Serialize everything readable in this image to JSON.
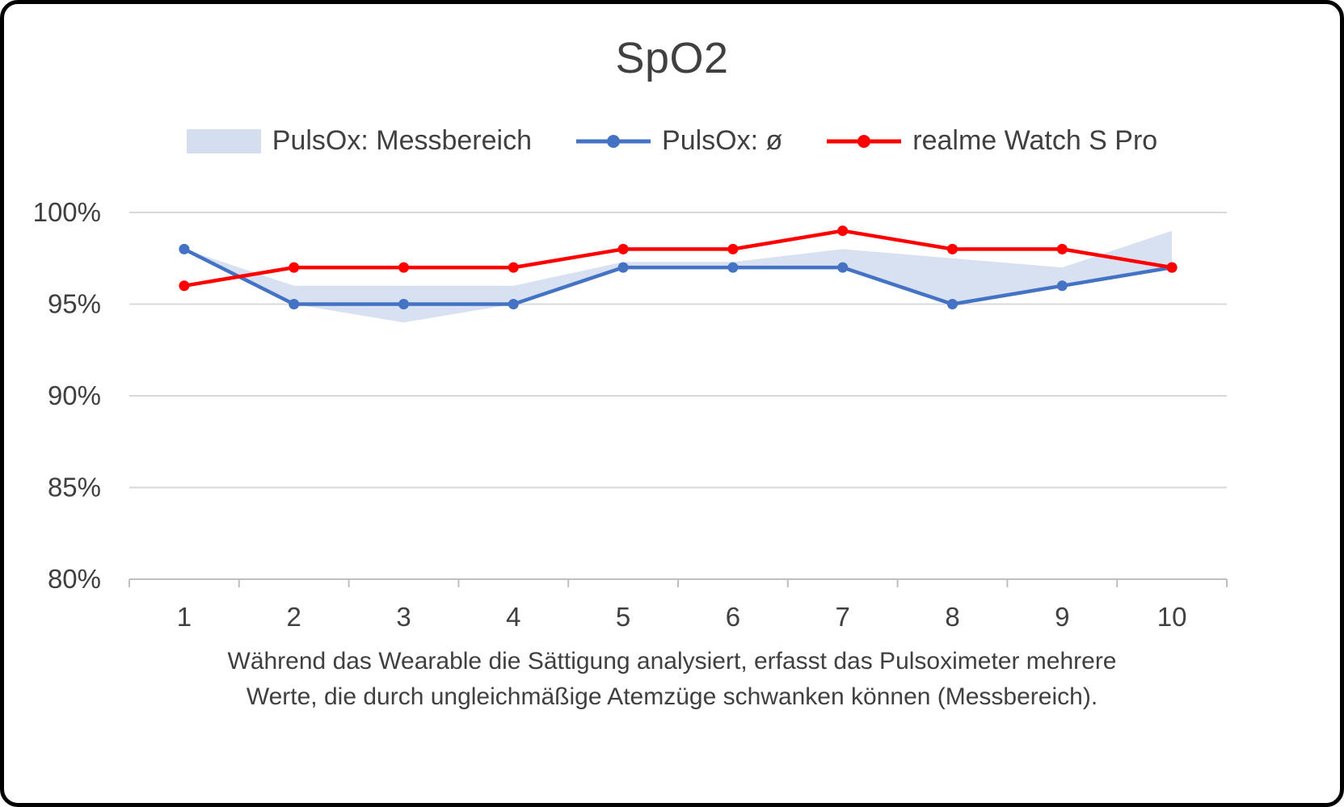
{
  "chart_data": {
    "type": "line",
    "title": "SpO2",
    "categories": [
      "1",
      "2",
      "3",
      "4",
      "5",
      "6",
      "7",
      "8",
      "9",
      "10"
    ],
    "ylim": [
      80,
      100
    ],
    "grid": true,
    "legend_position": "top",
    "y_ticks": [
      {
        "value": 100,
        "label": "100%"
      },
      {
        "value": 95,
        "label": "95%"
      },
      {
        "value": 90,
        "label": "90%"
      },
      {
        "value": 85,
        "label": "85%"
      },
      {
        "value": 80,
        "label": "80%"
      }
    ],
    "series": [
      {
        "name": "PulsOx: Messbereich",
        "type": "band",
        "color": "#D4DEEF",
        "min": [
          98,
          95,
          94,
          95,
          97,
          97,
          97,
          95,
          96,
          97
        ],
        "max": [
          98,
          96,
          96,
          96,
          97.3,
          97.3,
          98,
          97.5,
          97,
          99
        ]
      },
      {
        "name": "PulsOx: ø",
        "type": "line",
        "color": "#4472C4",
        "values": [
          98,
          95,
          95,
          95,
          97,
          97,
          97,
          95,
          96,
          97
        ]
      },
      {
        "name": "realme Watch S Pro",
        "type": "line",
        "color": "#FF0000",
        "values": [
          96,
          97,
          97,
          97,
          98,
          98,
          99,
          98,
          98,
          97
        ]
      }
    ],
    "caption": [
      "Während das Wearable die Sättigung analysiert, erfasst das Pulsoximeter mehrere",
      "Werte, die durch ungleichmäßige Atemzüge schwanken können (Messbereich)."
    ],
    "axis_colors": {
      "gridline": "#D9D9D9",
      "axis_line": "#BFBFBF",
      "label_text": "#404040"
    }
  }
}
